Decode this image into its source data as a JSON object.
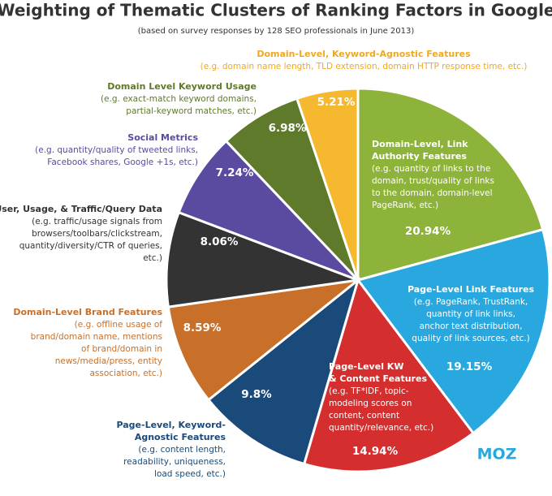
{
  "chart_data": {
    "type": "pie",
    "title": "Weighting of Thematic Clusters of Ranking Factors in Google",
    "subtitle": "(based on survey responses by 128 SEO professionals in June 2013)",
    "logo": "MOZ",
    "labels": [
      {
        "name_lines": [
          "Domain-Level, Link",
          "Authority Features"
        ],
        "description_lines": [
          "(e.g. quantity of links to the",
          "domain, trust/quality of links",
          "to the domain, domain-level",
          "PageRank, etc.)"
        ]
      },
      {
        "name_lines": [
          "Page-Level Link Features"
        ],
        "description_lines": [
          "(e.g. PageRank, TrustRank,",
          "quantity of link links,",
          "anchor text distribution,",
          "quality of link sources, etc.)"
        ]
      },
      {
        "name_lines": [
          "Page-Level KW",
          "& Content Features"
        ],
        "description_lines": [
          "(e.g. TF*IDF, topic-",
          "modeling scores on",
          "content, content",
          "quantity/relevance, etc.)"
        ]
      },
      {
        "name_lines": [
          "Page-Level, Keyword-",
          "Agnostic Features"
        ],
        "description_lines": [
          "(e.g. content length,",
          "readability, uniqueness,",
          "load speed, etc.)"
        ]
      },
      {
        "name_lines": [
          "Domain-Level Brand Features"
        ],
        "description_lines": [
          "(e.g. offline usage of",
          "brand/domain name, mentions",
          "of brand/domain in",
          "news/media/press, entity",
          "association, etc.)"
        ]
      },
      {
        "name_lines": [
          "User, Usage, & Traffic/Query Data"
        ],
        "description_lines": [
          "(e.g. traffic/usage signals from",
          "browsers/toolbars/clickstream,",
          "quantity/diversity/CTR of queries,",
          "etc.)"
        ]
      },
      {
        "name_lines": [
          "Social Metrics"
        ],
        "description_lines": [
          "(e.g. quantity/quality of tweeted links,",
          "Facebook shares, Google +1s, etc.)"
        ]
      },
      {
        "name_lines": [
          "Domain Level Keyword Usage"
        ],
        "description_lines": [
          "(e.g. exact-match keyword domains,",
          "partial-keyword matches, etc.)"
        ]
      },
      {
        "name_lines": [
          "Domain-Level, Keyword-Agnostic Features"
        ],
        "description_lines": [
          "(e.g. domain name length, TLD extension, domain HTTP response time, etc.)"
        ]
      }
    ],
    "values": [
      20.94,
      19.15,
      14.94,
      9.8,
      8.59,
      8.06,
      7.24,
      6.98,
      5.21
    ],
    "value_labels": [
      "20.94%",
      "19.15%",
      "14.94%",
      "9.8%",
      "8.59%",
      "8.06%",
      "7.24%",
      "6.98%",
      "5.21%"
    ],
    "colors": [
      "#8db33a",
      "#29a8e0",
      "#d42e2e",
      "#1a4a7a",
      "#c8702a",
      "#333333",
      "#5a4aa0",
      "#5e7a2a",
      "#f5b82e"
    ]
  }
}
